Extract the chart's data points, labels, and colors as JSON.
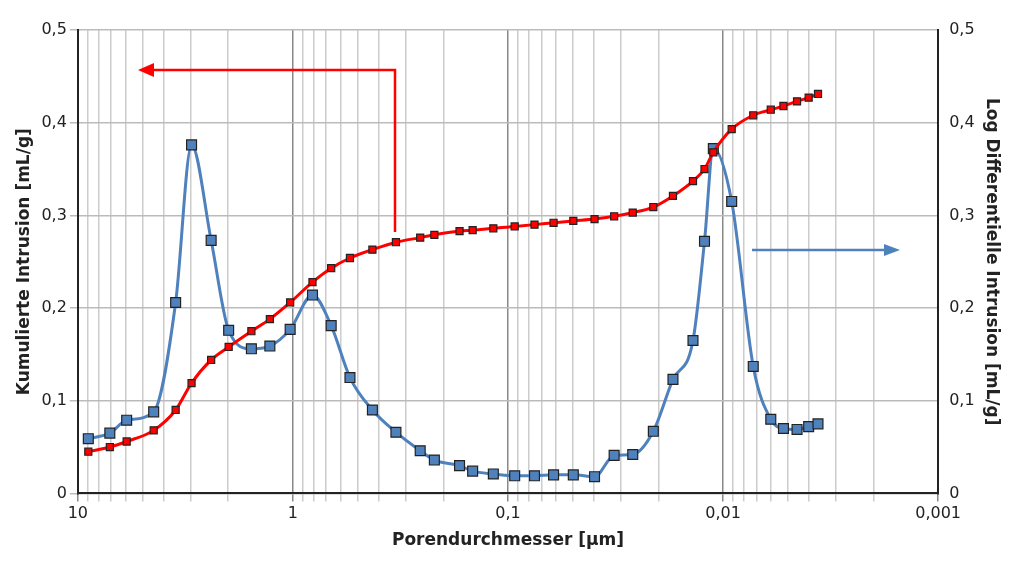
{
  "chart_data": {
    "type": "line",
    "xlabel": "Porendurchmesser [µm]",
    "ylabel": "Kumulierte Intrusion [mL/g]",
    "y2label": "Log Differentielle Intrusion [mL/g]",
    "x": [
      8.94,
      7.1,
      5.93,
      4.44,
      3.51,
      2.96,
      2.4,
      1.99,
      1.56,
      1.28,
      1.03,
      0.811,
      0.664,
      0.543,
      0.427,
      0.332,
      0.256,
      0.22,
      0.168,
      0.146,
      0.117,
      0.0931,
      0.0753,
      0.0614,
      0.0497,
      0.0396,
      0.0321,
      0.0263,
      0.0211,
      0.0171,
      0.0138,
      0.0122,
      0.0111,
      0.00912,
      0.00724,
      0.006,
      0.00524,
      0.00453,
      0.004,
      0.00362
    ],
    "series": [
      {
        "color": "#ff0000",
        "values": [
          0.045,
          0.05,
          0.056,
          0.068,
          0.09,
          0.119,
          0.144,
          0.158,
          0.175,
          0.188,
          0.206,
          0.228,
          0.243,
          0.254,
          0.263,
          0.271,
          0.276,
          0.279,
          0.283,
          0.284,
          0.286,
          0.288,
          0.29,
          0.292,
          0.294,
          0.296,
          0.299,
          0.303,
          0.309,
          0.321,
          0.337,
          0.35,
          0.368,
          0.393,
          0.408,
          0.414,
          0.418,
          0.423,
          0.427,
          0.431
        ]
      },
      {
        "color": "#4f81bd",
        "axis": "y2",
        "values": [
          0.059,
          0.065,
          0.079,
          0.088,
          0.206,
          0.376,
          0.273,
          0.176,
          0.156,
          0.159,
          0.177,
          0.214,
          0.181,
          0.125,
          0.09,
          0.066,
          0.046,
          0.036,
          0.03,
          0.024,
          0.021,
          0.019,
          0.019,
          0.02,
          0.02,
          0.018,
          0.041,
          0.042,
          0.067,
          0.123,
          0.165,
          0.272,
          0.372,
          0.315,
          0.137,
          0.08,
          0.07,
          0.069,
          0.072,
          0.075
        ]
      }
    ],
    "log": "x",
    "xlim": [
      10,
      0.001
    ],
    "xticks": [
      {
        "value": 10,
        "label": "10"
      },
      {
        "value": 9,
        "label": null
      },
      {
        "value": 8,
        "label": null
      },
      {
        "value": 7,
        "label": null
      },
      {
        "value": 6,
        "label": null
      },
      {
        "value": 5,
        "label": null
      },
      {
        "value": 4,
        "label": null
      },
      {
        "value": 3,
        "label": null
      },
      {
        "value": 2,
        "label": null
      },
      {
        "value": 1,
        "label": "1"
      },
      {
        "value": 0.9,
        "label": null
      },
      {
        "value": 0.8,
        "label": null
      },
      {
        "value": 0.7,
        "label": null
      },
      {
        "value": 0.6,
        "label": null
      },
      {
        "value": 0.5,
        "label": null
      },
      {
        "value": 0.4,
        "label": null
      },
      {
        "value": 0.3,
        "label": null
      },
      {
        "value": 0.2,
        "label": null
      },
      {
        "value": 0.1,
        "label": "0,1"
      },
      {
        "value": 0.09,
        "label": null
      },
      {
        "value": 0.08,
        "label": null
      },
      {
        "value": 0.07,
        "label": null
      },
      {
        "value": 0.06,
        "label": null
      },
      {
        "value": 0.05,
        "label": null
      },
      {
        "value": 0.04,
        "label": null
      },
      {
        "value": 0.03,
        "label": null
      },
      {
        "value": 0.02,
        "label": null
      },
      {
        "value": 0.01,
        "label": "0,01"
      },
      {
        "value": 0.009,
        "label": null
      },
      {
        "value": 0.008,
        "label": null
      },
      {
        "value": 0.007,
        "label": null
      },
      {
        "value": 0.006,
        "label": null
      },
      {
        "value": 0.005,
        "label": null
      },
      {
        "value": 0.004,
        "label": null
      },
      {
        "value": 0.003,
        "label": null
      },
      {
        "value": 0.002,
        "label": null
      },
      {
        "value": 0.001,
        "label": "0,001"
      }
    ],
    "ylim": [
      0,
      0.5
    ],
    "yticks": [
      {
        "value": 0,
        "label": "0"
      },
      {
        "value": 0.1,
        "label": "0,1"
      },
      {
        "value": 0.2,
        "label": "0,2"
      },
      {
        "value": 0.3,
        "label": "0,3"
      },
      {
        "value": 0.4,
        "label": "0,4"
      },
      {
        "value": 0.5,
        "label": "0,5"
      }
    ],
    "y2lim": [
      0,
      0.5
    ],
    "y2ticks": [
      {
        "value": 0,
        "label": "0"
      },
      {
        "value": 0.1,
        "label": "0,1"
      },
      {
        "value": 0.2,
        "label": "0,2"
      },
      {
        "value": 0.3,
        "label": "0,3"
      },
      {
        "value": 0.4,
        "label": "0,4"
      },
      {
        "value": 0.5,
        "label": "0,5"
      }
    ],
    "grid": true,
    "legend": false,
    "marker": "square",
    "line_style": "solid"
  }
}
